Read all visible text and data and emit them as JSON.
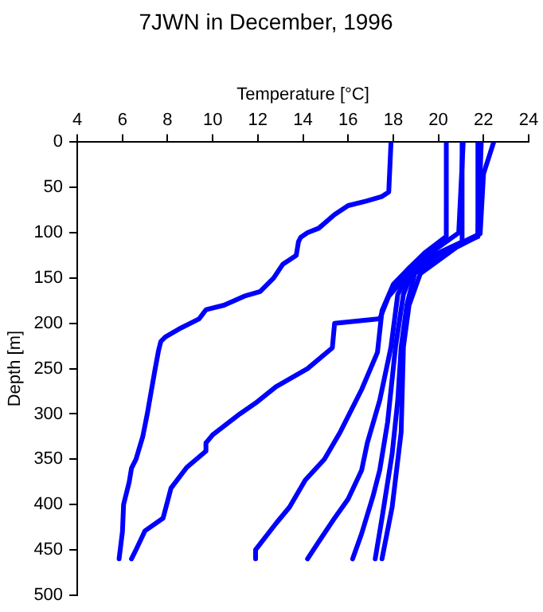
{
  "chart_data": {
    "type": "line",
    "title": "7JWN in December, 1996",
    "xlabel": "Temperature [°C]",
    "ylabel": "Depth [m]",
    "xlim": [
      4,
      24
    ],
    "xticks": [
      4,
      6,
      8,
      10,
      12,
      14,
      16,
      18,
      20,
      22,
      24
    ],
    "ylim": [
      500,
      0
    ],
    "yticks": [
      0,
      50,
      100,
      150,
      200,
      250,
      300,
      350,
      400,
      450,
      500
    ],
    "grid": false,
    "legend": false,
    "marker": "none",
    "line_style": "solid",
    "series": [
      {
        "color": "#0000ff",
        "x": [
          17.9,
          17.8,
          17.5,
          16.8,
          16.0,
          15.4,
          14.7,
          14.2,
          13.9,
          13.8,
          13.7,
          13.1,
          12.7,
          12.1,
          11.4,
          10.5,
          9.7,
          9.4,
          8.6,
          7.9,
          7.7,
          7.6,
          7.45,
          7.1,
          6.9,
          6.6,
          6.4,
          6.3,
          6.05,
          6.0,
          5.85
        ],
        "values": [
          0,
          55,
          60,
          65,
          70,
          80,
          95,
          100,
          105,
          110,
          125,
          135,
          150,
          165,
          170,
          180,
          185,
          195,
          205,
          215,
          220,
          230,
          250,
          300,
          325,
          350,
          360,
          375,
          400,
          430,
          460
        ]
      },
      {
        "color": "#0000ff",
        "x": [
          21.1,
          21.0,
          20.9,
          19.5,
          18.5,
          17.8,
          17.4,
          15.4,
          15.3,
          14.2,
          12.8,
          11.9,
          11.2,
          10.0,
          9.7,
          9.7,
          8.85,
          8.15,
          7.8,
          7.0,
          6.6,
          6.4
        ],
        "values": [
          0,
          50,
          100,
          125,
          150,
          170,
          195,
          200,
          227,
          250,
          270,
          288,
          300,
          323,
          332,
          341,
          359,
          382,
          415,
          429,
          450,
          460
        ]
      },
      {
        "color": "#0000ff",
        "x": [
          20.35,
          20.35,
          19.4,
          18.7,
          18.0,
          17.5,
          17.3,
          16.6,
          15.65,
          14.95,
          14.1,
          13.4,
          12.8,
          11.9,
          11.9
        ],
        "values": [
          0,
          104,
          122,
          139,
          157,
          186,
          232,
          273,
          320,
          350,
          373,
          403,
          421,
          450,
          460
        ]
      },
      {
        "color": "#0000ff",
        "x": [
          21.05,
          21.05,
          19.6,
          18.7,
          18.2,
          17.9,
          17.4,
          16.85,
          16.6,
          16.0,
          15.4,
          14.7,
          14.2
        ],
        "values": [
          0,
          110,
          127,
          145,
          168,
          226,
          285,
          332,
          362,
          394,
          415,
          441,
          460
        ]
      },
      {
        "color": "#0000ff",
        "x": [
          21.75,
          21.75,
          20.6,
          18.9,
          18.45,
          18.1,
          17.75,
          17.4,
          17.1,
          16.6,
          16.2
        ],
        "values": [
          0,
          104,
          116,
          139,
          168,
          226,
          309,
          362,
          391,
          432,
          460
        ]
      },
      {
        "color": "#0000ff",
        "x": [
          22.45,
          22.0,
          21.85,
          20.1,
          18.95,
          18.6,
          18.35,
          18.2,
          17.95,
          17.5,
          17.2
        ],
        "values": [
          0,
          35,
          101,
          122,
          145,
          180,
          226,
          285,
          344,
          415,
          460
        ]
      },
      {
        "color": "#0000ff",
        "x": [
          21.9,
          21.85,
          21.75,
          20.8,
          19.2,
          18.7,
          18.45,
          18.35,
          17.95,
          17.5
        ],
        "values": [
          0,
          34,
          104,
          116,
          145,
          180,
          226,
          320,
          403,
          460
        ]
      }
    ]
  }
}
